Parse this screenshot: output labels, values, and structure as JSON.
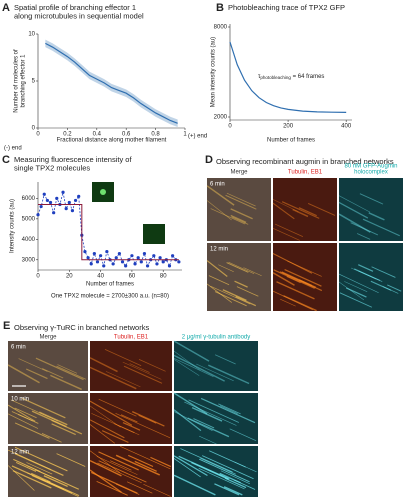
{
  "chart_data": [
    {
      "label": "A",
      "type": "line",
      "title": [
        "Spatial profile of branching effector 1",
        "along microtubules in sequential model"
      ],
      "ylabel": [
        "Number of molecules of",
        "branching effector 1"
      ],
      "xlabel": "Fractional distance along mother filament",
      "annotations": [
        "(-) end",
        "(+) end"
      ],
      "xlim": [
        0,
        1
      ],
      "xticks": [
        0,
        0.2,
        0.4,
        0.6,
        0.8,
        1
      ],
      "ylim": [
        0,
        10
      ],
      "yticks": [
        0,
        5,
        10
      ],
      "series": [
        {
          "color": "#2f6fb0",
          "x": [
            0.05,
            0.1,
            0.15,
            0.2,
            0.25,
            0.3,
            0.35,
            0.4,
            0.45,
            0.5,
            0.55,
            0.6,
            0.65,
            0.7,
            0.75,
            0.8,
            0.85,
            0.9,
            0.95
          ],
          "values": [
            9.0,
            8.6,
            8.1,
            7.6,
            7.0,
            6.3,
            5.6,
            5.2,
            4.8,
            4.3,
            4.0,
            3.7,
            3.2,
            2.6,
            2.1,
            1.6,
            1.2,
            0.8,
            0.5
          ],
          "error": [
            0.4,
            0.4,
            0.4,
            0.4,
            0.4,
            0.4,
            0.4,
            0.4,
            0.4,
            0.4,
            0.4,
            0.4,
            0.4,
            0.4,
            0.4,
            0.4,
            0.4,
            0.4,
            0.4
          ]
        }
      ]
    },
    {
      "label": "B",
      "type": "line",
      "title": [
        "Photobleaching trace of TPX2 GFP"
      ],
      "ylabel": [
        "Mean intensity counts (au)"
      ],
      "xlabel": "Number of frames",
      "annotation": {
        "symbol": "τ",
        "subscript": "photobleaching",
        "text": " = 64 frames"
      },
      "xlim": [
        0,
        420
      ],
      "xticks": [
        0,
        200,
        400
      ],
      "ylim": [
        1800,
        8200
      ],
      "yticks": [
        2000,
        8000
      ],
      "series": [
        {
          "color": "#2f6fb0",
          "x": [
            0,
            25,
            50,
            75,
            100,
            125,
            150,
            175,
            200,
            250,
            300,
            350,
            400
          ],
          "values": [
            7000,
            5482,
            4451,
            3756,
            3286,
            2967,
            2751,
            2606,
            2507,
            2394,
            2344,
            2320,
            2309
          ]
        }
      ]
    },
    {
      "label": "C",
      "type": "scatter",
      "title": [
        "Measuring fluorescence intensity of",
        "single TPX2 molecules"
      ],
      "ylabel": [
        "Intensity counts (au)"
      ],
      "xlabel": "Number of frames",
      "caption": "One TPX2 molecule = 2700±300 a.u. (n=80)",
      "xlim": [
        0,
        92
      ],
      "xticks": [
        0,
        20,
        40,
        60,
        80
      ],
      "ylim": [
        2500,
        6800
      ],
      "yticks": [
        3000,
        4000,
        5000,
        6000
      ],
      "series": [
        {
          "color": "#1f3fbf",
          "style": "points-line",
          "x": [
            0,
            2,
            4,
            6,
            8,
            10,
            12,
            14,
            16,
            18,
            20,
            22,
            24,
            26,
            28,
            30,
            32,
            34,
            36,
            38,
            40,
            42,
            44,
            46,
            48,
            50,
            52,
            54,
            56,
            58,
            60,
            62,
            64,
            66,
            68,
            70,
            72,
            74,
            76,
            78,
            80,
            82,
            84,
            86,
            88,
            90
          ],
          "values": [
            5200,
            5600,
            6200,
            5900,
            5800,
            5300,
            6000,
            5700,
            6300,
            5500,
            5800,
            5400,
            5900,
            6100,
            4200,
            3400,
            3100,
            2800,
            3300,
            2900,
            3200,
            2700,
            3400,
            3000,
            2800,
            3100,
            3300,
            2900,
            2700,
            3000,
            3200,
            2800,
            3100,
            2900,
            3300,
            2700,
            3000,
            3200,
            2800,
            3100,
            2900,
            3000,
            2700,
            3200,
            3000,
            2900
          ]
        },
        {
          "color": "#8b1a3a",
          "style": "step",
          "x": [
            0,
            28,
            28,
            90
          ],
          "values": [
            5700,
            5700,
            3000,
            3000
          ]
        }
      ]
    }
  ],
  "figure": {
    "D": {
      "label": "D",
      "title": "Observing recombinant augmin in branched networks",
      "columns": [
        [
          "Merge"
        ],
        [
          "Tubulin, EB1"
        ],
        [
          "80 nM GFP-Augmin",
          "holocomplex"
        ]
      ],
      "rows": [
        "6 min",
        "12 min"
      ]
    },
    "E": {
      "label": "E",
      "title": "Observing γ-TuRC in branched networks",
      "columns": [
        [
          "Merge"
        ],
        [
          "Tubulin, EB1"
        ],
        [
          "2 μg/ml γ-tubulin antibody"
        ]
      ],
      "rows": [
        "6 min",
        "10 min",
        "12 min"
      ]
    }
  }
}
